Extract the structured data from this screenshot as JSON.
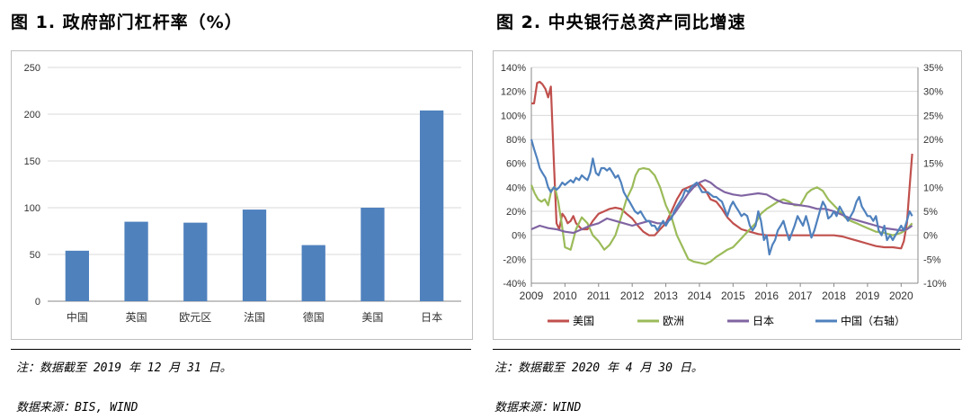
{
  "left": {
    "title": "图 1. 政府部门杠杆率（%）",
    "note": "注：数据截至 2019 年 12 月 31 日。",
    "source": "数据来源：BIS, WIND"
  },
  "right": {
    "title": "图 2. 中央银行总资产同比增速",
    "note": "注：数据截至 2020 年 4 月 30 日。",
    "source": "数据来源：WIND"
  },
  "chart_data": [
    {
      "type": "bar",
      "categories": [
        "中国",
        "英国",
        "欧元区",
        "法国",
        "德国",
        "美国",
        "日本"
      ],
      "values": [
        54,
        85,
        84,
        98,
        60,
        100,
        204
      ],
      "ylim": [
        0,
        250
      ],
      "yticks": [
        0,
        50,
        100,
        150,
        200,
        250
      ],
      "grid": true,
      "color": "#4f81bd"
    },
    {
      "type": "line",
      "xlim": [
        2009,
        2020.5
      ],
      "xticks": [
        "2009",
        "2010",
        "2011",
        "2012",
        "2013",
        "2014",
        "2015",
        "2016",
        "2017",
        "2018",
        "2019",
        "2020"
      ],
      "ylim_left": [
        -40,
        140
      ],
      "yticks_left": [
        "-40%",
        "-20%",
        "0%",
        "20%",
        "40%",
        "60%",
        "80%",
        "100%",
        "120%",
        "140%"
      ],
      "ylim_right": [
        -10,
        35
      ],
      "yticks_right": [
        "-10%",
        "-5%",
        "0%",
        "5%",
        "10%",
        "15%",
        "20%",
        "25%",
        "30%",
        "35%"
      ],
      "legend_position": "bottom",
      "series": [
        {
          "name": "美国",
          "color": "#c0504d",
          "axis": "left",
          "x": [
            2009.0,
            2009.08,
            2009.17,
            2009.25,
            2009.33,
            2009.42,
            2009.5,
            2009.58,
            2009.67,
            2009.75,
            2009.83,
            2009.92,
            2010.0,
            2010.08,
            2010.17,
            2010.25,
            2010.33,
            2010.5,
            2010.67,
            2010.83,
            2011.0,
            2011.17,
            2011.33,
            2011.5,
            2011.67,
            2011.83,
            2012.0,
            2012.17,
            2012.33,
            2012.5,
            2012.67,
            2012.83,
            2013.0,
            2013.17,
            2013.33,
            2013.5,
            2013.67,
            2013.83,
            2014.0,
            2014.17,
            2014.33,
            2014.5,
            2014.67,
            2014.83,
            2015.0,
            2015.25,
            2015.5,
            2015.75,
            2016.0,
            2016.5,
            2017.0,
            2017.5,
            2018.0,
            2018.25,
            2018.5,
            2018.75,
            2019.0,
            2019.25,
            2019.5,
            2019.75,
            2020.0,
            2020.08,
            2020.17,
            2020.25,
            2020.33
          ],
          "y": [
            110,
            110,
            127,
            128,
            126,
            122,
            115,
            124,
            60,
            10,
            5,
            18,
            15,
            10,
            12,
            16,
            10,
            5,
            5,
            12,
            18,
            20,
            22,
            23,
            22,
            18,
            14,
            8,
            3,
            0,
            0,
            5,
            10,
            20,
            30,
            38,
            40,
            42,
            43,
            38,
            30,
            28,
            22,
            15,
            10,
            5,
            3,
            1,
            0,
            0,
            0,
            0,
            0,
            -1,
            -3,
            -5,
            -7,
            -9,
            -10,
            -10,
            -11,
            -5,
            10,
            40,
            68
          ]
        },
        {
          "name": "欧洲",
          "color": "#9bbb59",
          "axis": "left",
          "x": [
            2009.0,
            2009.1,
            2009.2,
            2009.3,
            2009.4,
            2009.5,
            2009.6,
            2009.7,
            2009.8,
            2009.9,
            2010.0,
            2010.17,
            2010.33,
            2010.5,
            2010.67,
            2010.83,
            2011.0,
            2011.17,
            2011.33,
            2011.5,
            2011.67,
            2011.83,
            2012.0,
            2012.1,
            2012.2,
            2012.33,
            2012.5,
            2012.67,
            2012.83,
            2013.0,
            2013.17,
            2013.33,
            2013.5,
            2013.67,
            2013.83,
            2014.0,
            2014.17,
            2014.33,
            2014.5,
            2014.67,
            2014.83,
            2015.0,
            2015.17,
            2015.33,
            2015.5,
            2015.67,
            2015.83,
            2016.0,
            2016.17,
            2016.33,
            2016.5,
            2016.67,
            2016.83,
            2017.0,
            2017.1,
            2017.2,
            2017.33,
            2017.5,
            2017.67,
            2017.83,
            2018.0,
            2018.17,
            2018.33,
            2018.5,
            2018.67,
            2018.83,
            2019.0,
            2019.25,
            2019.5,
            2019.75,
            2020.0,
            2020.17,
            2020.33
          ],
          "y": [
            42,
            35,
            30,
            28,
            30,
            25,
            38,
            40,
            28,
            10,
            -10,
            -12,
            5,
            15,
            10,
            0,
            -5,
            -12,
            -8,
            0,
            15,
            30,
            40,
            50,
            55,
            56,
            55,
            50,
            40,
            25,
            15,
            0,
            -10,
            -20,
            -22,
            -23,
            -24,
            -22,
            -18,
            -15,
            -12,
            -10,
            -5,
            0,
            5,
            10,
            18,
            22,
            25,
            28,
            30,
            28,
            25,
            25,
            30,
            35,
            38,
            40,
            37,
            30,
            25,
            20,
            15,
            12,
            10,
            8,
            6,
            3,
            2,
            0,
            2,
            5,
            10
          ]
        },
        {
          "name": "日本",
          "color": "#8064a2",
          "axis": "left",
          "x": [
            2009.0,
            2009.25,
            2009.5,
            2009.75,
            2010.0,
            2010.25,
            2010.5,
            2010.75,
            2011.0,
            2011.25,
            2011.5,
            2011.75,
            2012.0,
            2012.25,
            2012.5,
            2012.75,
            2013.0,
            2013.25,
            2013.5,
            2013.67,
            2013.83,
            2014.0,
            2014.17,
            2014.33,
            2014.5,
            2014.75,
            2015.0,
            2015.25,
            2015.5,
            2015.75,
            2016.0,
            2016.25,
            2016.5,
            2016.75,
            2017.0,
            2017.25,
            2017.5,
            2017.75,
            2018.0,
            2018.25,
            2018.5,
            2018.75,
            2019.0,
            2019.25,
            2019.5,
            2019.75,
            2020.0,
            2020.17,
            2020.33
          ],
          "y": [
            5,
            8,
            6,
            5,
            3,
            2,
            5,
            8,
            10,
            14,
            12,
            10,
            8,
            10,
            12,
            10,
            10,
            18,
            28,
            35,
            40,
            44,
            46,
            44,
            40,
            36,
            34,
            33,
            34,
            35,
            34,
            30,
            27,
            26,
            25,
            24,
            22,
            22,
            20,
            17,
            14,
            12,
            10,
            8,
            6,
            5,
            4,
            5,
            8
          ]
        },
        {
          "name": "中国（右轴）",
          "color": "#4f81bd",
          "axis": "right",
          "x": [
            2009.0,
            2009.08,
            2009.17,
            2009.25,
            2009.33,
            2009.42,
            2009.5,
            2009.58,
            2009.67,
            2009.75,
            2009.83,
            2009.92,
            2010.0,
            2010.08,
            2010.17,
            2010.25,
            2010.33,
            2010.42,
            2010.5,
            2010.58,
            2010.67,
            2010.75,
            2010.83,
            2010.92,
            2011.0,
            2011.08,
            2011.17,
            2011.25,
            2011.33,
            2011.42,
            2011.5,
            2011.58,
            2011.67,
            2011.75,
            2011.83,
            2011.92,
            2012.0,
            2012.08,
            2012.17,
            2012.25,
            2012.33,
            2012.42,
            2012.5,
            2012.58,
            2012.67,
            2012.75,
            2012.83,
            2012.92,
            2013.0,
            2013.08,
            2013.17,
            2013.25,
            2013.33,
            2013.42,
            2013.5,
            2013.58,
            2013.67,
            2013.75,
            2013.83,
            2013.92,
            2014.0,
            2014.08,
            2014.17,
            2014.25,
            2014.33,
            2014.42,
            2014.5,
            2014.58,
            2014.67,
            2014.75,
            2014.83,
            2014.92,
            2015.0,
            2015.08,
            2015.17,
            2015.25,
            2015.33,
            2015.42,
            2015.5,
            2015.58,
            2015.67,
            2015.75,
            2015.83,
            2015.92,
            2016.0,
            2016.08,
            2016.17,
            2016.25,
            2016.33,
            2016.42,
            2016.5,
            2016.58,
            2016.67,
            2016.75,
            2016.83,
            2016.92,
            2017.0,
            2017.08,
            2017.17,
            2017.25,
            2017.33,
            2017.42,
            2017.5,
            2017.58,
            2017.67,
            2017.75,
            2017.83,
            2017.92,
            2018.0,
            2018.08,
            2018.17,
            2018.25,
            2018.33,
            2018.42,
            2018.5,
            2018.58,
            2018.67,
            2018.75,
            2018.83,
            2018.92,
            2019.0,
            2019.08,
            2019.17,
            2019.25,
            2019.33,
            2019.42,
            2019.5,
            2019.58,
            2019.67,
            2019.75,
            2019.83,
            2019.92,
            2020.0,
            2020.08,
            2020.17,
            2020.25,
            2020.33
          ],
          "y": [
            20,
            18,
            16,
            14,
            13,
            12,
            10,
            9,
            10,
            9.5,
            10,
            11,
            10.5,
            11,
            11.5,
            11,
            12,
            11.5,
            12.5,
            12,
            11.5,
            13,
            16,
            13,
            12.5,
            14,
            14,
            13.5,
            14,
            13,
            12,
            12.5,
            11,
            9,
            8,
            7,
            6,
            5,
            4.5,
            5,
            4,
            3,
            3,
            2,
            2,
            1,
            2,
            3,
            2,
            3,
            3.5,
            5,
            6,
            7,
            8,
            9.5,
            9,
            10,
            10.5,
            11,
            10,
            9,
            9,
            9,
            8.5,
            8,
            8,
            7.5,
            7,
            5.5,
            4,
            6,
            7,
            6,
            5,
            4,
            4.5,
            4,
            2,
            1,
            2,
            5,
            3,
            -1,
            0,
            -4,
            -2,
            -1,
            1,
            2,
            3,
            1,
            -1,
            0.5,
            2,
            4,
            3,
            2,
            4,
            2,
            -0.5,
            1,
            3,
            5,
            7,
            6,
            3.5,
            4,
            5,
            4,
            6,
            5,
            4,
            3,
            4,
            5,
            7,
            8,
            6,
            5,
            4,
            4,
            3,
            4,
            1,
            0,
            2,
            -1,
            0,
            -1,
            0,
            1,
            2,
            1,
            3,
            5,
            4
          ]
        }
      ]
    }
  ]
}
